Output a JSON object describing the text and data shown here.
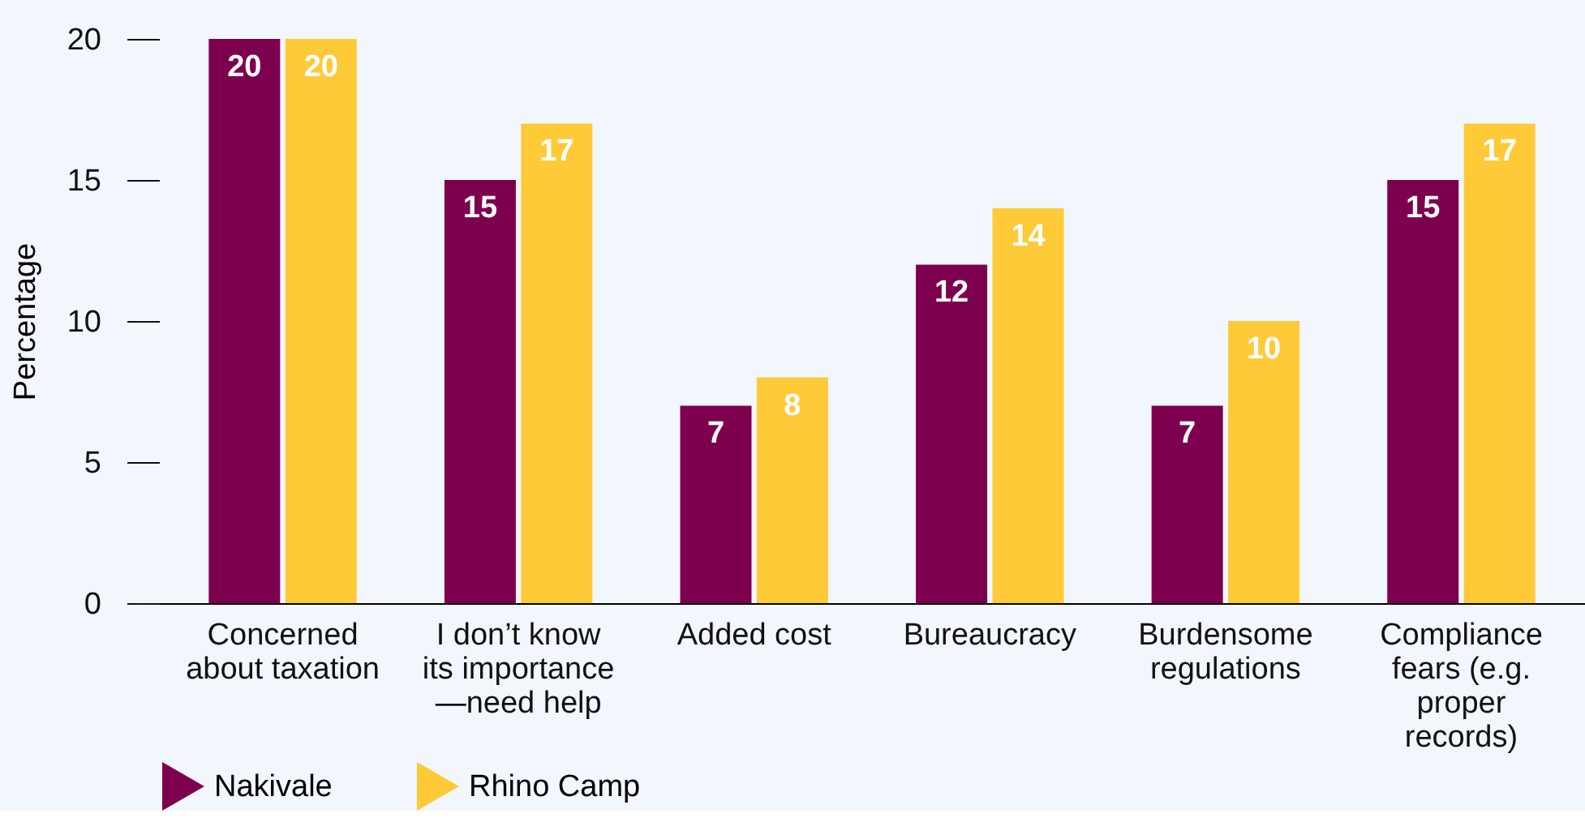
{
  "chart_data": {
    "type": "bar",
    "ylabel": "Percentage",
    "categories": [
      "Concerned about taxation",
      "I don’t know its importance—need help",
      "Added cost",
      "Bureaucracy",
      "Burdensome regulations",
      "Compliance fears (e.g. proper records)"
    ],
    "series": [
      {
        "name": "Nakivale",
        "color": "#7d004f",
        "values": [
          20,
          15,
          7,
          12,
          7,
          15
        ]
      },
      {
        "name": "Rhino Camp",
        "color": "#ffca38",
        "values": [
          20,
          17,
          8,
          14,
          10,
          17
        ]
      }
    ],
    "ylim": [
      0,
      20
    ],
    "yticks": [
      0,
      5,
      10,
      15,
      20
    ],
    "grid": false,
    "legend": "bottom left",
    "data_labels": true
  }
}
